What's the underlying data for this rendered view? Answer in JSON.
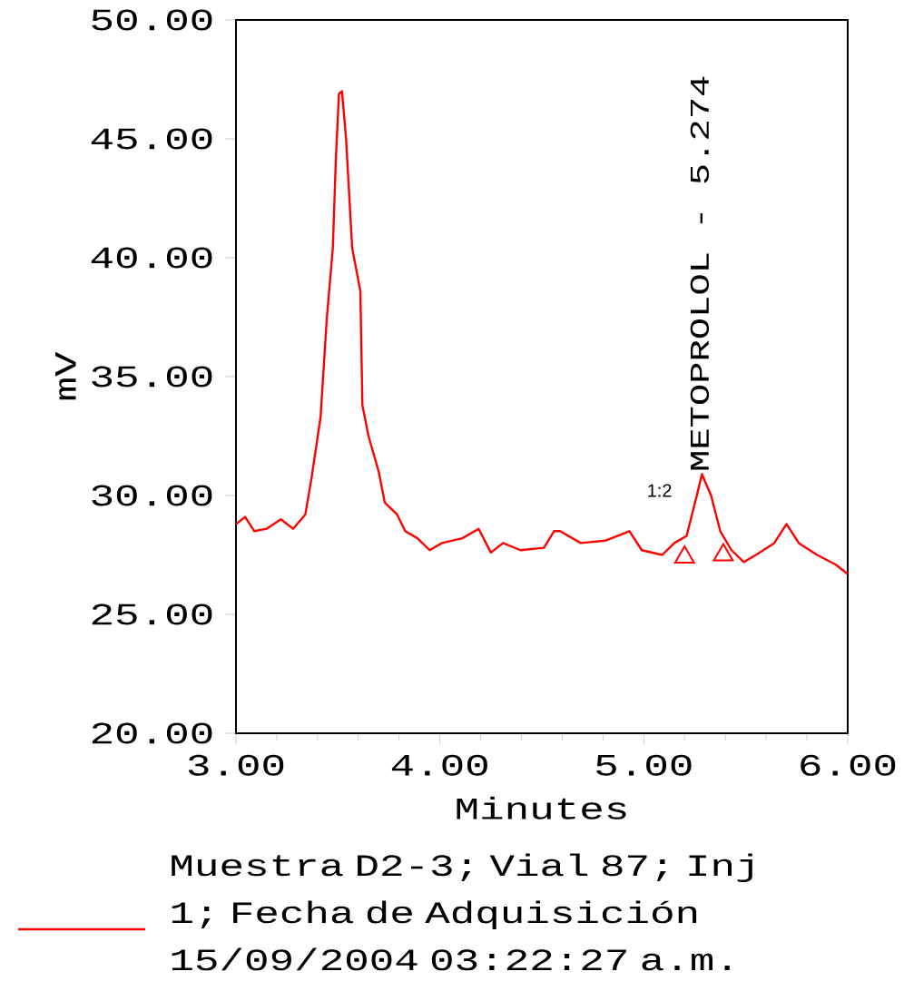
{
  "chart_data": {
    "type": "line",
    "xlabel": "Minutes",
    "ylabel": "mV",
    "xlim": [
      3,
      6
    ],
    "ylim": [
      20,
      50
    ],
    "xticks": [
      {
        "value": 3,
        "label": "3.00"
      },
      {
        "value": 4,
        "label": "4.00"
      },
      {
        "value": 5,
        "label": "5.00"
      },
      {
        "value": 6,
        "label": "6.00"
      }
    ],
    "yticks": [
      {
        "value": 20,
        "label": "20.00"
      },
      {
        "value": 25,
        "label": "25.00"
      },
      {
        "value": 30,
        "label": "30.00"
      },
      {
        "value": 35,
        "label": "35.00"
      },
      {
        "value": 40,
        "label": "40.00"
      },
      {
        "value": 45,
        "label": "45.00"
      },
      {
        "value": 50,
        "label": "50.00"
      }
    ],
    "grid": false,
    "legend": "bottom",
    "annotations": [
      {
        "text": "METOPROLOL - 5.274",
        "x": 5.274,
        "y": 30.9
      },
      "1:2"
    ],
    "series": [
      {
        "name": "Muestra D2-3; Vial 87; Inj 1; Fecha de Adquisición 15/09/2004 03:22:27 a.m.",
        "color": "#ff0000",
        "x": [
          3.0,
          3.045,
          3.09,
          3.15,
          3.22,
          3.28,
          3.34,
          3.37,
          3.415,
          3.445,
          3.475,
          3.49,
          3.505,
          3.52,
          3.54,
          3.57,
          3.61,
          3.62,
          3.65,
          3.7,
          3.73,
          3.79,
          3.83,
          3.89,
          3.95,
          4.01,
          4.11,
          4.19,
          4.25,
          4.31,
          4.395,
          4.51,
          4.56,
          4.59,
          4.69,
          4.81,
          4.93,
          4.99,
          5.09,
          5.15,
          5.21,
          5.26,
          5.285,
          5.33,
          5.375,
          5.43,
          5.49,
          5.55,
          5.64,
          5.7,
          5.76,
          5.85,
          5.94,
          6.0
        ],
        "values": [
          28.8,
          29.1,
          28.5,
          28.6,
          29.0,
          28.6,
          29.2,
          30.7,
          33.3,
          37.4,
          40.4,
          44.2,
          46.9,
          47.0,
          45.0,
          40.4,
          38.6,
          33.8,
          32.5,
          31.0,
          29.7,
          29.2,
          28.5,
          28.2,
          27.7,
          28.0,
          28.2,
          28.6,
          27.6,
          28.0,
          27.7,
          27.8,
          28.5,
          28.5,
          28.0,
          28.1,
          28.5,
          27.7,
          27.5,
          28.0,
          28.3,
          30.0,
          30.9,
          30.0,
          28.5,
          27.7,
          27.2,
          27.5,
          28.0,
          28.8,
          28.0,
          27.5,
          27.1,
          26.7
        ]
      },
      {
        "type": "scatter",
        "marker": "triangle",
        "color": "#ff0000",
        "x": [
          5.2,
          5.39
        ],
        "values": [
          27.4,
          27.5
        ]
      }
    ]
  }
}
